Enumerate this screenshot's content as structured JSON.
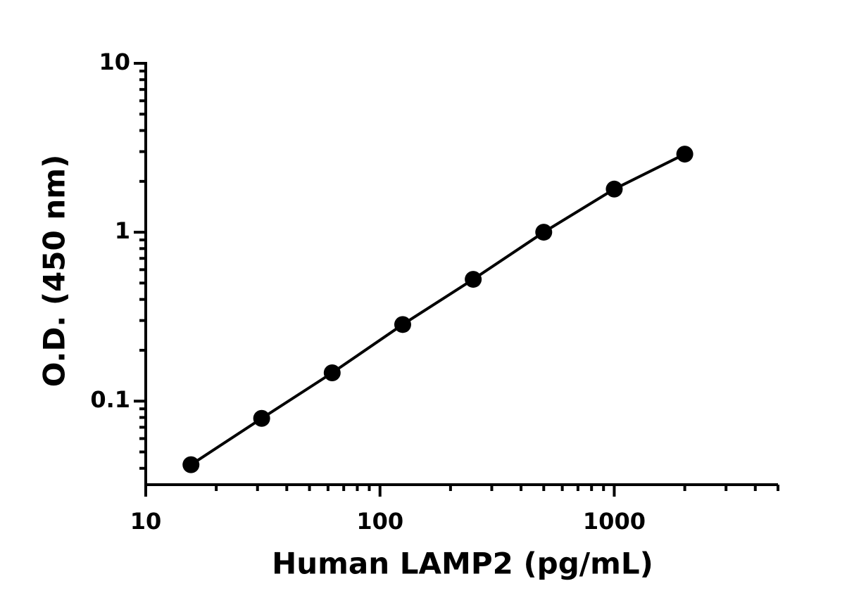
{
  "chart_data": {
    "type": "line",
    "x_label": "Human LAMP2 (pg/mL)",
    "y_label": "O.D. (450 nm)",
    "x": [
      15.6,
      31.25,
      62.5,
      125,
      250,
      500,
      1000,
      2000
    ],
    "series": [
      {
        "color": "#000000",
        "values": [
          0.042,
          0.079,
          0.147,
          0.284,
          0.526,
          1.0,
          1.8,
          2.9
        ]
      }
    ],
    "xlim": [
      10,
      5000
    ],
    "ylim": [
      0.032,
      10
    ],
    "xticks": [
      10,
      100,
      1000
    ],
    "yticks": [
      0.1,
      1,
      10
    ],
    "xlog": true,
    "ylog": true,
    "grid": false
  }
}
